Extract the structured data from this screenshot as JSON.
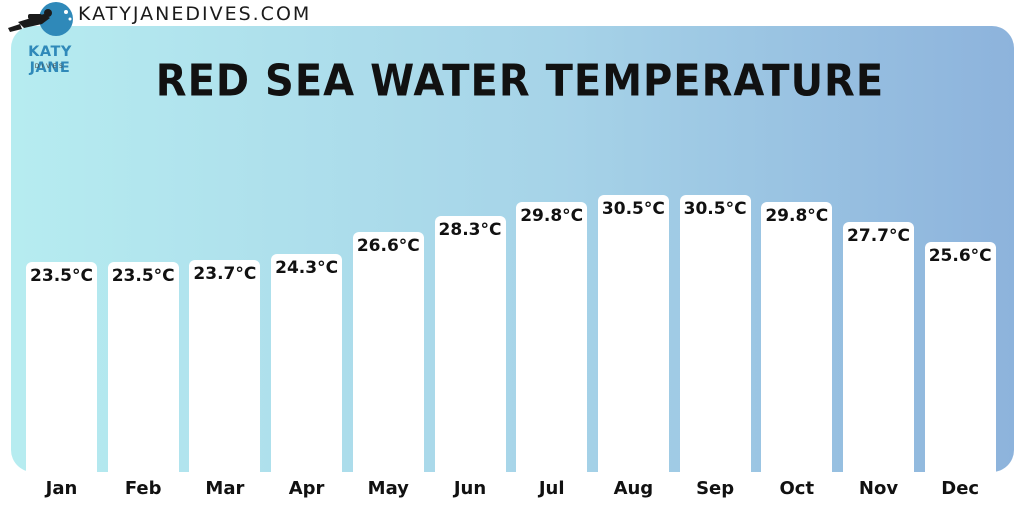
{
  "header": {
    "site_url": "KATYJANEDIVES.COM",
    "logo_name": "KATY JANE",
    "logo_sub": "DIVES"
  },
  "colors": {
    "background_gradient": [
      "#b6ecf0",
      "#a6d3e8",
      "#8db3dc"
    ],
    "bar": "#ffffff",
    "text": "#111111",
    "logo_blue": "#2f89b9"
  },
  "chart_data": {
    "type": "bar",
    "title": "RED SEA WATER TEMPERATURE",
    "xlabel": "",
    "ylabel": "",
    "unit": "°C",
    "categories": [
      "Jan",
      "Feb",
      "Mar",
      "Apr",
      "May",
      "Jun",
      "Jul",
      "Aug",
      "Sep",
      "Oct",
      "Nov",
      "Dec"
    ],
    "values": [
      23.5,
      23.5,
      23.7,
      24.3,
      26.6,
      28.3,
      29.8,
      30.5,
      30.5,
      29.8,
      27.7,
      25.6
    ],
    "value_labels": [
      "23.5°C",
      "23.5°C",
      "23.7°C",
      "24.3°C",
      "26.6°C",
      "28.3°C",
      "29.8°C",
      "30.5°C",
      "30.5°C",
      "29.8°C",
      "27.7°C",
      "25.6°C"
    ],
    "ylim": [
      20,
      31
    ],
    "grid": false,
    "legend": "none"
  }
}
